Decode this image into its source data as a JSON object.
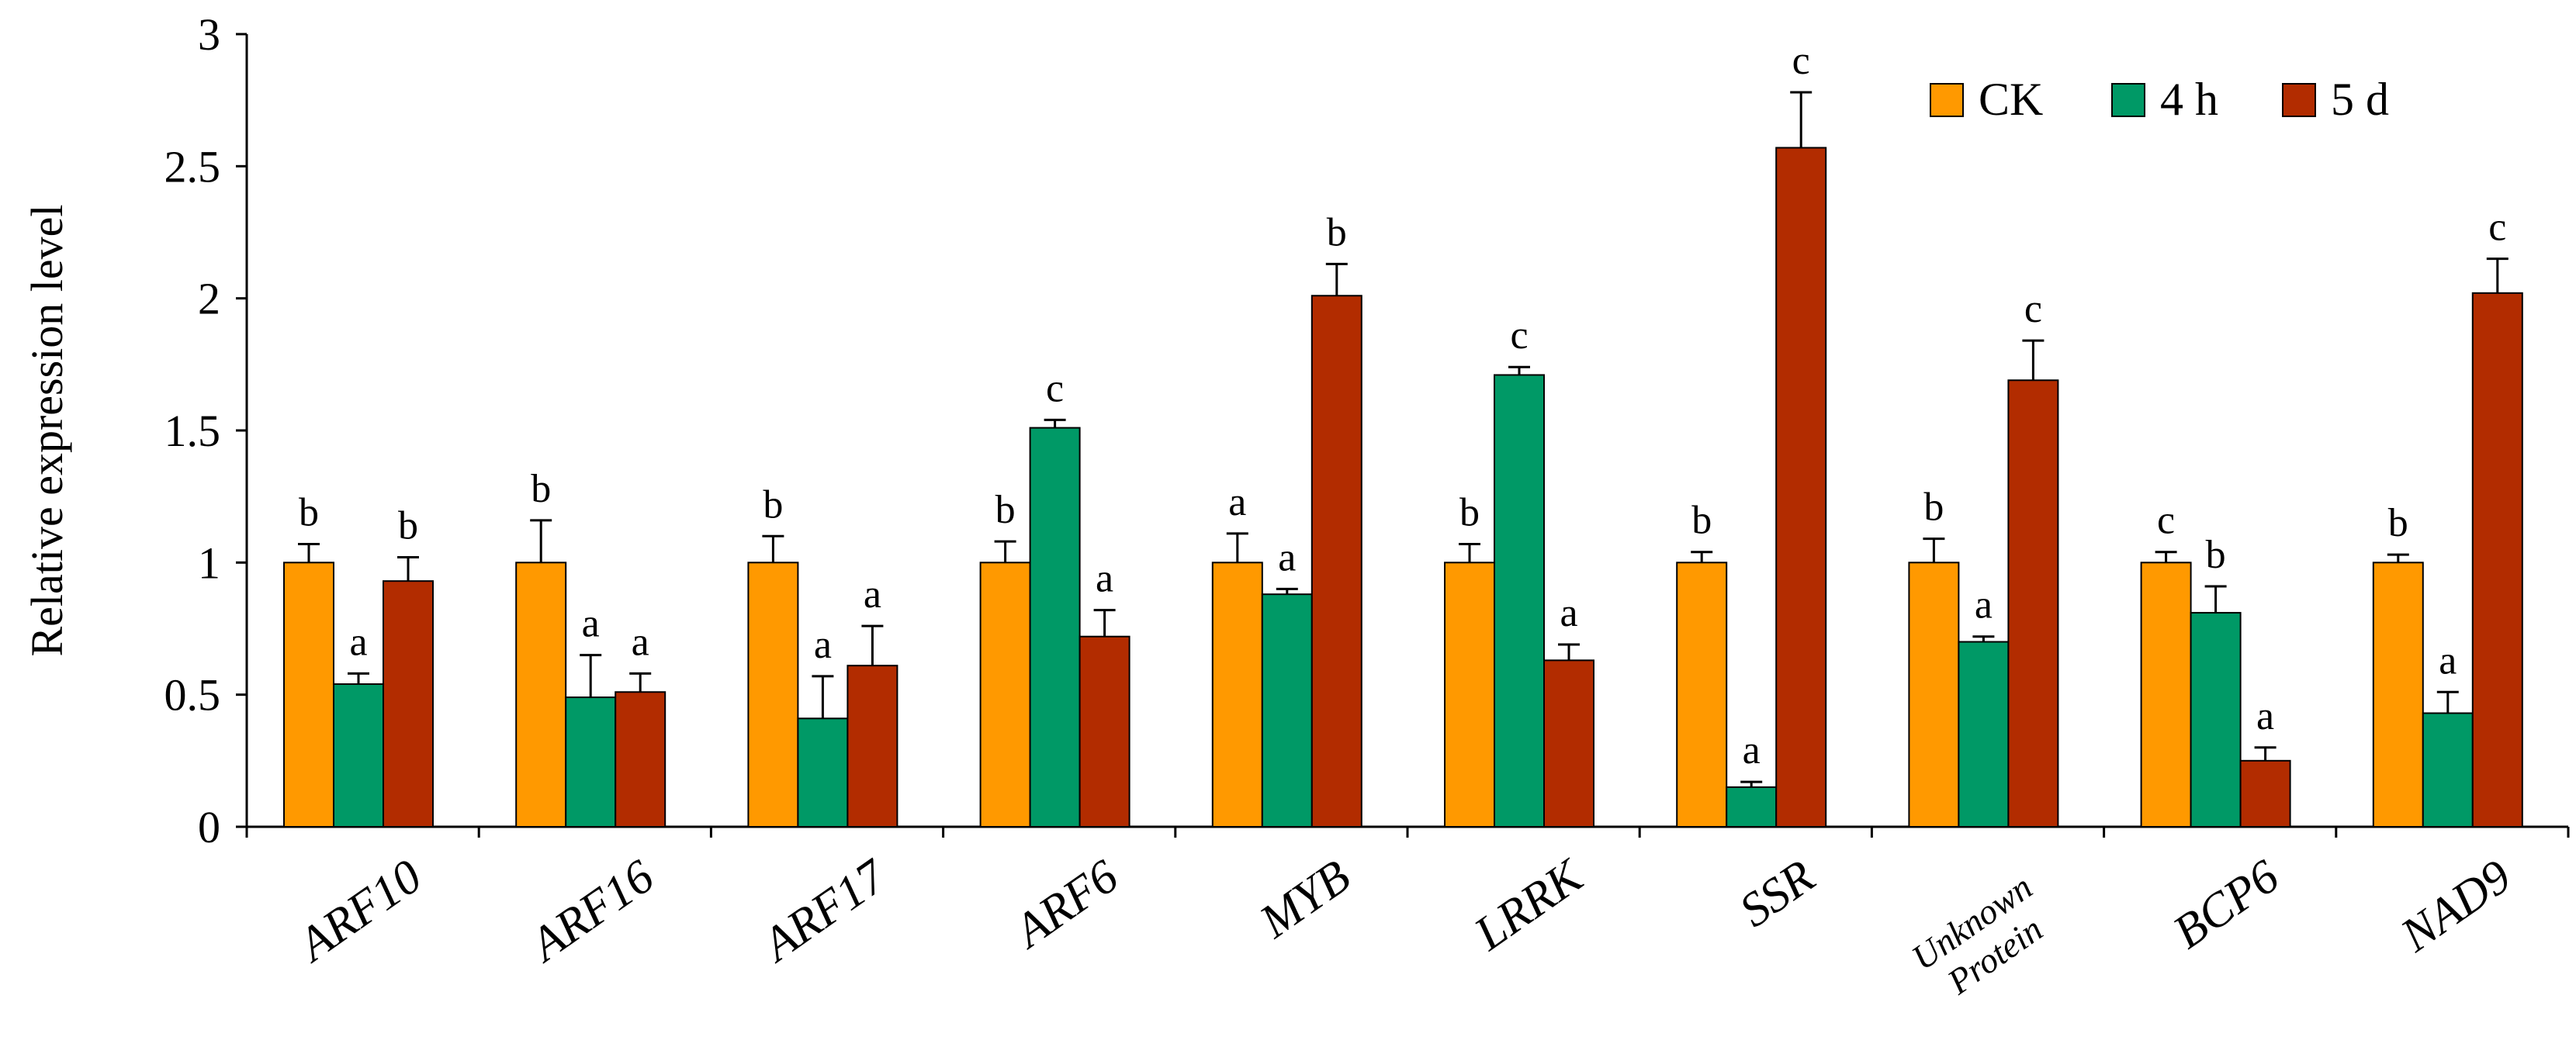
{
  "chart_data": {
    "type": "bar",
    "title": "",
    "xlabel": "",
    "ylabel": "Relative expression level",
    "ylim": [
      0,
      3
    ],
    "yticks": [
      "0",
      "0.5",
      "1",
      "1.5",
      "2",
      "2.5",
      "3"
    ],
    "legend_position": "top-right",
    "categories": [
      {
        "label": "ARF10"
      },
      {
        "label": "ARF16"
      },
      {
        "label": "ARF17"
      },
      {
        "label": "ARF6"
      },
      {
        "label": "MYB"
      },
      {
        "label": "LRRK"
      },
      {
        "label": "SSR"
      },
      {
        "label": "Unknown Protein",
        "lines": [
          "Unknown",
          "Protein"
        ]
      },
      {
        "label": "BCP6"
      },
      {
        "label": "NAD9"
      }
    ],
    "series": [
      {
        "name": "CK",
        "color": "#FF9900",
        "values": [
          1.0,
          1.0,
          1.0,
          1.0,
          1.0,
          1.0,
          1.0,
          1.0,
          1.0,
          1.0
        ],
        "errors": [
          0.07,
          0.16,
          0.1,
          0.08,
          0.11,
          0.07,
          0.04,
          0.09,
          0.04,
          0.03
        ],
        "labels": [
          "b",
          "b",
          "b",
          "b",
          "a",
          "b",
          "b",
          "b",
          "c",
          "b"
        ]
      },
      {
        "name": "4 h",
        "color": "#009966",
        "values": [
          0.54,
          0.49,
          0.41,
          1.51,
          0.88,
          1.71,
          0.15,
          0.7,
          0.81,
          0.43
        ],
        "errors": [
          0.04,
          0.16,
          0.16,
          0.03,
          0.02,
          0.03,
          0.02,
          0.02,
          0.1,
          0.08
        ],
        "labels": [
          "a",
          "a",
          "a",
          "c",
          "a",
          "c",
          "a",
          "a",
          "b",
          "a"
        ]
      },
      {
        "name": "5 d",
        "color": "#B22C00",
        "values": [
          0.93,
          0.51,
          0.61,
          0.72,
          2.01,
          0.63,
          2.57,
          1.69,
          0.25,
          2.02
        ],
        "errors": [
          0.09,
          0.07,
          0.15,
          0.1,
          0.12,
          0.06,
          0.21,
          0.15,
          0.05,
          0.13
        ],
        "labels": [
          "b",
          "a",
          "a",
          "a",
          "b",
          "a",
          "c",
          "c",
          "a",
          "c"
        ]
      }
    ]
  }
}
